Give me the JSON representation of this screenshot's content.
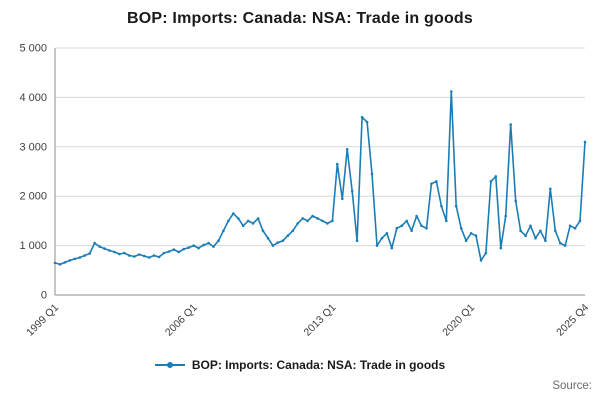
{
  "title": "BOP: Imports: Canada: NSA: Trade in goods",
  "legend": {
    "label": "BOP: Imports: Canada: NSA: Trade in goods"
  },
  "source_label": "Source:",
  "colors": {
    "line": "#1b7db6",
    "grid": "#d9d9d9",
    "axis": "#8c8c8c",
    "tick_text": "#404042",
    "title_text": "#1a1a1a",
    "source_text": "#6e6e6e"
  },
  "chart_data": {
    "type": "line",
    "title": "BOP: Imports: Canada: NSA: Trade in goods",
    "x_start": "1999 Q1",
    "x_end": "2025 Q4",
    "frequency": "quarterly",
    "x_tick_labels": [
      "1999 Q1",
      "2006 Q1",
      "2013 Q1",
      "2020 Q1",
      "2025 Q4"
    ],
    "x_tick_indices": [
      0,
      28,
      56,
      84,
      107
    ],
    "ylim": [
      0,
      5000
    ],
    "y_ticks": [
      0,
      1000,
      2000,
      3000,
      4000,
      5000
    ],
    "y_tick_labels": [
      "0",
      "1 000",
      "2 000",
      "3 000",
      "4 000",
      "5 000"
    ],
    "grid": "horizontal",
    "legend_position": "bottom",
    "series": [
      {
        "name": "BOP: Imports: Canada: NSA: Trade in goods",
        "values": [
          650,
          620,
          660,
          700,
          730,
          760,
          800,
          840,
          1050,
          980,
          940,
          900,
          870,
          830,
          850,
          800,
          780,
          820,
          790,
          760,
          800,
          770,
          850,
          880,
          920,
          870,
          930,
          960,
          1000,
          950,
          1010,
          1050,
          980,
          1100,
          1300,
          1500,
          1650,
          1550,
          1400,
          1500,
          1450,
          1550,
          1300,
          1150,
          1000,
          1060,
          1100,
          1200,
          1300,
          1450,
          1550,
          1500,
          1600,
          1550,
          1500,
          1450,
          1500,
          2650,
          1950,
          2950,
          2100,
          1100,
          3600,
          3500,
          2450,
          1000,
          1150,
          1250,
          950,
          1350,
          1400,
          1500,
          1300,
          1600,
          1400,
          1350,
          2250,
          2300,
          1800,
          1500,
          4120,
          1800,
          1350,
          1100,
          1250,
          1200,
          700,
          850,
          2300,
          2400,
          950,
          1600,
          3450,
          1900,
          1300,
          1200,
          1400,
          1150,
          1300,
          1100,
          2150,
          1300,
          1050,
          1000,
          1400,
          1350,
          1500,
          3100
        ]
      }
    ]
  }
}
